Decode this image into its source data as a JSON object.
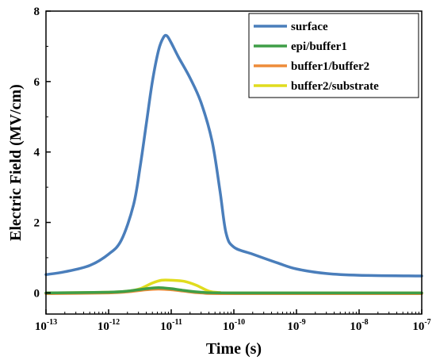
{
  "chart_data": {
    "type": "line",
    "xlabel": "Time (s)",
    "ylabel": "Electric Field (MV/cm)",
    "x_scale": "log",
    "xlim": [
      1e-13,
      1e-07
    ],
    "ylim": [
      -0.6,
      8
    ],
    "x_ticks": [
      {
        "value": 1e-13,
        "base": "10",
        "exp": "-13"
      },
      {
        "value": 1e-12,
        "base": "10",
        "exp": "-12"
      },
      {
        "value": 1e-11,
        "base": "10",
        "exp": "-11"
      },
      {
        "value": 1e-10,
        "base": "10",
        "exp": "-10"
      },
      {
        "value": 1e-09,
        "base": "10",
        "exp": "-9"
      },
      {
        "value": 1e-08,
        "base": "10",
        "exp": "-8"
      },
      {
        "value": 1e-07,
        "base": "10",
        "exp": "-7"
      }
    ],
    "y_ticks": [
      {
        "value": 0,
        "label": "0"
      },
      {
        "value": 2,
        "label": "2"
      },
      {
        "value": 4,
        "label": "4"
      },
      {
        "value": 6,
        "label": "6"
      },
      {
        "value": 8,
        "label": "8"
      }
    ],
    "legend": {
      "position": "top-right"
    },
    "grid": false,
    "series": [
      {
        "name": "surface",
        "color": "#4a7ebb",
        "x": [
          1e-13,
          2e-13,
          5e-13,
          1e-12,
          1.6e-12,
          2.5e-12,
          3.2e-12,
          4e-12,
          5e-12,
          6.3e-12,
          7.5e-12,
          8.5e-12,
          1e-11,
          1.3e-11,
          2e-11,
          3e-11,
          4.5e-11,
          6e-11,
          7.5e-11,
          1e-10,
          2e-10,
          5e-10,
          1e-09,
          3e-09,
          1e-08,
          1e-07
        ],
        "y": [
          0.52,
          0.6,
          0.78,
          1.1,
          1.5,
          2.5,
          3.6,
          4.8,
          6.0,
          6.9,
          7.25,
          7.3,
          7.1,
          6.7,
          6.1,
          5.4,
          4.3,
          2.9,
          1.7,
          1.3,
          1.1,
          0.85,
          0.68,
          0.55,
          0.5,
          0.48
        ]
      },
      {
        "name": "epi/buffer1",
        "color": "#3f9e47",
        "x": [
          1e-13,
          1e-12,
          2e-12,
          4e-12,
          6.3e-12,
          1e-11,
          1.6e-11,
          3e-11,
          1e-10,
          1e-07
        ],
        "y": [
          0.0,
          0.02,
          0.05,
          0.12,
          0.15,
          0.12,
          0.07,
          0.02,
          0.0,
          0.0
        ]
      },
      {
        "name": "buffer1/buffer2",
        "color": "#ed8c3a",
        "x": [
          1e-13,
          1e-12,
          2e-12,
          4e-12,
          6.3e-12,
          1e-11,
          1.6e-11,
          3e-11,
          1e-10,
          1e-07
        ],
        "y": [
          -0.02,
          0.0,
          0.03,
          0.09,
          0.11,
          0.09,
          0.05,
          0.0,
          -0.02,
          -0.02
        ]
      },
      {
        "name": "buffer2/substrate",
        "color": "#e0dc1e",
        "x": [
          1e-13,
          1e-12,
          2e-12,
          3.2e-12,
          5e-12,
          7e-12,
          1e-11,
          1.6e-11,
          2.5e-11,
          4e-11,
          6e-11,
          1e-10,
          1e-07
        ],
        "y": [
          0.0,
          0.02,
          0.05,
          0.12,
          0.28,
          0.36,
          0.36,
          0.33,
          0.22,
          0.05,
          0.01,
          0.0,
          0.0
        ]
      }
    ]
  }
}
